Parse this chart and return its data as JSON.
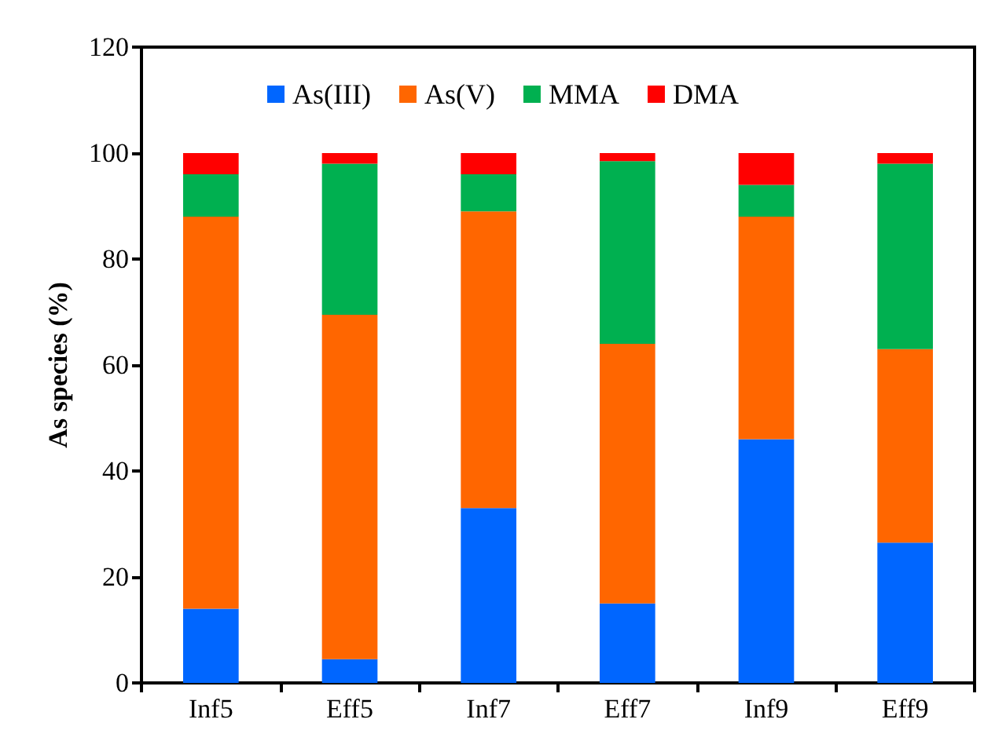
{
  "chart_data": {
    "type": "bar",
    "stacked": true,
    "ylabel": "As species (%)",
    "categories": [
      "Inf5",
      "Eff5",
      "Inf7",
      "Eff7",
      "Inf9",
      "Eff9"
    ],
    "series": [
      {
        "name": "As(III)",
        "color": "#0066ff",
        "values": [
          14,
          4.5,
          33,
          15,
          46,
          26.5
        ]
      },
      {
        "name": "As(V)",
        "color": "#ff6600",
        "values": [
          74,
          65,
          56,
          49,
          42,
          36.5
        ]
      },
      {
        "name": "MMA",
        "color": "#00b050",
        "values": [
          8,
          28.5,
          7,
          34.5,
          6,
          35
        ]
      },
      {
        "name": "DMA",
        "color": "#ff0000",
        "values": [
          4,
          2,
          4,
          1.5,
          6,
          2
        ]
      }
    ],
    "ylim": [
      0,
      120
    ],
    "yticks": [
      0,
      20,
      40,
      60,
      80,
      100,
      120
    ],
    "grid": false,
    "legend": "top"
  }
}
